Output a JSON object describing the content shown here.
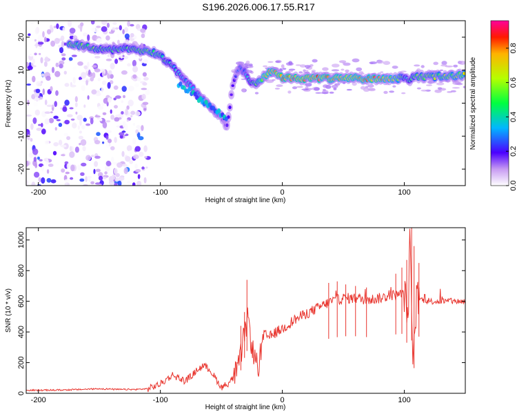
{
  "title": "S196.2026.006.17.55.R17",
  "chart_data": [
    {
      "type": "heatmap",
      "xlabel": "Height of straight line (km)",
      "ylabel": "Frequency (Hz)",
      "xlim": [
        -210,
        150
      ],
      "ylim": [
        -25,
        25
      ],
      "xticks": [
        -200,
        -100,
        0,
        100
      ],
      "yticks": [
        -20,
        -10,
        0,
        10,
        20
      ],
      "colorbar": {
        "label": "Normalized spectral amplitude",
        "range": [
          0,
          0.96
        ],
        "ticks": [
          0.0,
          0.2,
          0.4,
          0.6,
          0.8
        ]
      },
      "ridge": {
        "x": [
          -175,
          -160,
          -145,
          -125,
          -110,
          -100,
          -90,
          -80,
          -70,
          -60,
          -50,
          -45,
          -40,
          -35,
          -30,
          -25,
          -20,
          -15,
          -10,
          -5,
          0,
          20,
          40,
          60,
          80,
          95,
          100,
          102,
          110,
          130,
          150
        ],
        "freq": [
          18,
          17,
          16,
          16.5,
          16,
          14.5,
          11,
          7,
          3,
          -1,
          -4,
          -7,
          7,
          11,
          9,
          6,
          6,
          8,
          9.5,
          9,
          7.5,
          7.5,
          7.5,
          7.5,
          7.5,
          7.5,
          8,
          7,
          8,
          8.2,
          8.5
        ],
        "amp": [
          0.6,
          0.55,
          0.5,
          0.5,
          0.6,
          0.55,
          0.45,
          0.4,
          0.35,
          0.3,
          0.25,
          0.2,
          0.2,
          0.3,
          0.35,
          0.45,
          0.6,
          0.8,
          0.85,
          0.85,
          0.9,
          0.9,
          0.85,
          0.85,
          0.85,
          0.7,
          0.5,
          0.4,
          0.6,
          0.65,
          0.7
        ]
      }
    },
    {
      "type": "line",
      "xlabel": "Height of straight line (km)",
      "ylabel": "SNR (10 * v/v)",
      "xlim": [
        -210,
        150
      ],
      "ylim": [
        0,
        1080
      ],
      "xticks": [
        -200,
        -100,
        0,
        100
      ],
      "yticks": [
        0,
        200,
        400,
        600,
        800,
        1000
      ],
      "series": [
        {
          "name": "SNR",
          "color": "#e8332c",
          "x": [
            -210,
            -195,
            -180,
            -165,
            -150,
            -135,
            -120,
            -110,
            -100,
            -95,
            -90,
            -85,
            -80,
            -75,
            -70,
            -65,
            -60,
            -55,
            -50,
            -45,
            -40,
            -35,
            -32,
            -30,
            -28,
            -25,
            -22,
            -20,
            -15,
            -10,
            -5,
            0,
            10,
            20,
            30,
            40,
            50,
            60,
            70,
            80,
            90,
            95,
            100,
            103,
            105,
            107,
            110,
            115,
            120,
            130,
            140,
            150
          ],
          "y": [
            20,
            20,
            22,
            25,
            30,
            25,
            25,
            30,
            60,
            90,
            120,
            100,
            80,
            110,
            150,
            180,
            160,
            100,
            40,
            60,
            100,
            200,
            350,
            420,
            500,
            300,
            220,
            160,
            380,
            370,
            400,
            420,
            480,
            520,
            560,
            600,
            620,
            620,
            610,
            620,
            640,
            640,
            650,
            500,
            1050,
            100,
            620,
            610,
            600,
            600,
            600,
            600
          ],
          "spikes": [
            {
              "x": -31,
              "y": 530
            },
            {
              "x": -29,
              "y": 740
            },
            {
              "x": -34,
              "y": 440
            },
            {
              "x": 38,
              "y": 720
            },
            {
              "x": 45,
              "y": 730
            },
            {
              "x": 52,
              "y": 710
            },
            {
              "x": 60,
              "y": 700
            },
            {
              "x": 69,
              "y": 690
            },
            {
              "x": 93,
              "y": 780
            },
            {
              "x": 98,
              "y": 820
            },
            {
              "x": 102,
              "y": 870
            },
            {
              "x": 106,
              "y": 1080
            },
            {
              "x": 108,
              "y": 960
            },
            {
              "x": 112,
              "y": 850
            }
          ]
        }
      ]
    }
  ]
}
